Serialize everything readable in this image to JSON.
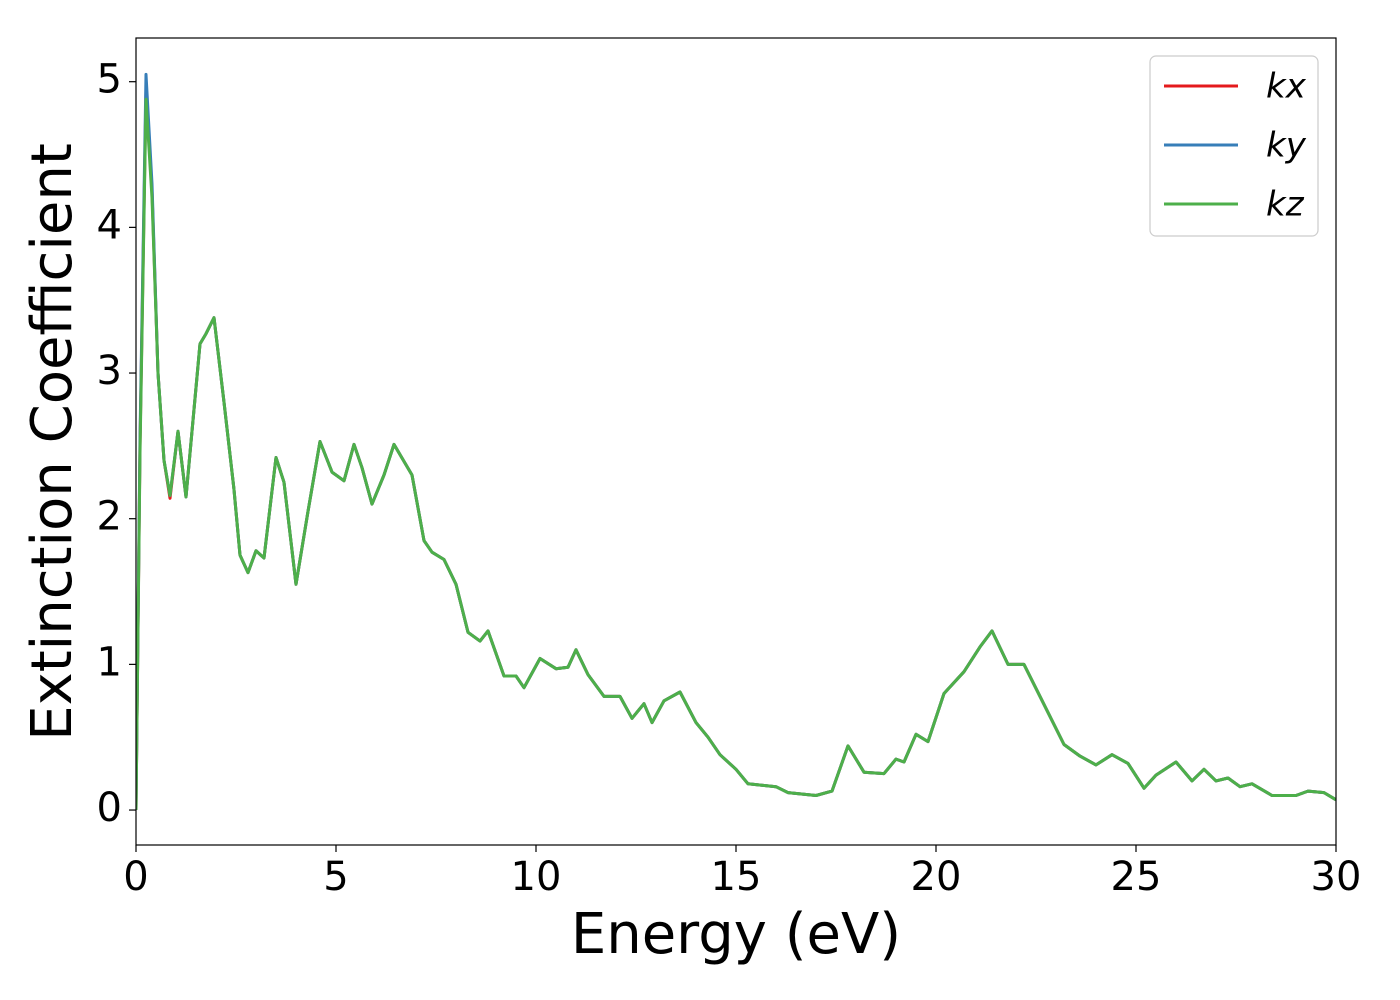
{
  "chart_data": {
    "type": "line",
    "xlabel": "Energy (eV)",
    "ylabel": "Extinction Coefficient",
    "xlim": [
      0,
      30
    ],
    "ylim": [
      -0.24,
      5.3
    ],
    "xticks": [
      0,
      5,
      10,
      15,
      20,
      25,
      30
    ],
    "yticks": [
      0,
      1,
      2,
      3,
      4,
      5
    ],
    "legend": "upper right",
    "x": [
      0,
      0.1,
      0.25,
      0.4,
      0.55,
      0.7,
      0.85,
      1.05,
      1.25,
      1.4,
      1.6,
      1.75,
      1.95,
      2.2,
      2.45,
      2.6,
      2.8,
      3.0,
      3.2,
      3.5,
      3.7,
      4.0,
      4.3,
      4.6,
      4.9,
      5.2,
      5.45,
      5.65,
      5.9,
      6.2,
      6.45,
      6.9,
      7.2,
      7.4,
      7.7,
      8.0,
      8.3,
      8.6,
      8.8,
      9.2,
      9.5,
      9.7,
      10.1,
      10.5,
      10.8,
      11.0,
      11.3,
      11.7,
      12.1,
      12.4,
      12.7,
      12.9,
      13.2,
      13.6,
      14.0,
      14.3,
      14.6,
      15.0,
      15.3,
      16.0,
      16.3,
      17.0,
      17.4,
      17.8,
      18.2,
      18.7,
      19.0,
      19.2,
      19.5,
      19.8,
      20.2,
      20.7,
      21.1,
      21.4,
      21.8,
      22.2,
      22.6,
      23.2,
      23.6,
      24.0,
      24.4,
      24.8,
      25.2,
      25.5,
      26.0,
      26.4,
      26.7,
      27.0,
      27.3,
      27.6,
      27.9,
      28.4,
      29.0,
      29.3,
      29.7,
      30.0
    ],
    "series": [
      {
        "name": "kx",
        "color": "#e41a1c",
        "values": [
          0,
          2.5,
          4.93,
          4.25,
          3.0,
          2.4,
          2.14,
          2.6,
          2.15,
          2.6,
          3.2,
          3.27,
          3.38,
          2.8,
          2.2,
          1.75,
          1.63,
          1.78,
          1.73,
          2.42,
          2.25,
          1.55,
          2.05,
          2.53,
          2.32,
          2.26,
          2.51,
          2.35,
          2.1,
          2.3,
          2.51,
          2.3,
          1.85,
          1.77,
          1.72,
          1.55,
          1.22,
          1.16,
          1.23,
          0.92,
          0.92,
          0.84,
          1.04,
          0.97,
          0.98,
          1.1,
          0.93,
          0.78,
          0.78,
          0.63,
          0.73,
          0.6,
          0.75,
          0.81,
          0.6,
          0.5,
          0.38,
          0.28,
          0.18,
          0.16,
          0.12,
          0.1,
          0.13,
          0.44,
          0.26,
          0.25,
          0.35,
          0.33,
          0.52,
          0.47,
          0.8,
          0.95,
          1.12,
          1.23,
          1.0,
          1.0,
          0.78,
          0.45,
          0.37,
          0.31,
          0.38,
          0.32,
          0.15,
          0.24,
          0.33,
          0.2,
          0.28,
          0.2,
          0.22,
          0.16,
          0.18,
          0.1,
          0.1,
          0.13,
          0.12,
          0.07
        ]
      },
      {
        "name": "ky",
        "color": "#377eb8",
        "values": [
          0,
          2.55,
          5.05,
          4.3,
          3.0,
          2.4,
          2.16,
          2.6,
          2.15,
          2.6,
          3.2,
          3.27,
          3.38,
          2.8,
          2.2,
          1.75,
          1.63,
          1.78,
          1.73,
          2.42,
          2.25,
          1.55,
          2.05,
          2.53,
          2.32,
          2.26,
          2.51,
          2.35,
          2.1,
          2.3,
          2.51,
          2.3,
          1.85,
          1.77,
          1.72,
          1.55,
          1.22,
          1.16,
          1.23,
          0.92,
          0.92,
          0.84,
          1.04,
          0.97,
          0.98,
          1.1,
          0.93,
          0.78,
          0.78,
          0.63,
          0.73,
          0.6,
          0.75,
          0.81,
          0.6,
          0.5,
          0.38,
          0.28,
          0.18,
          0.16,
          0.12,
          0.1,
          0.13,
          0.44,
          0.26,
          0.25,
          0.35,
          0.33,
          0.52,
          0.47,
          0.8,
          0.95,
          1.12,
          1.23,
          1.0,
          1.0,
          0.78,
          0.45,
          0.37,
          0.31,
          0.38,
          0.32,
          0.15,
          0.24,
          0.33,
          0.2,
          0.28,
          0.2,
          0.22,
          0.16,
          0.18,
          0.1,
          0.1,
          0.13,
          0.12,
          0.07
        ]
      },
      {
        "name": "kz",
        "color": "#4daf4a",
        "values": [
          0,
          2.45,
          4.88,
          4.2,
          3.0,
          2.4,
          2.16,
          2.6,
          2.15,
          2.6,
          3.2,
          3.27,
          3.38,
          2.8,
          2.2,
          1.75,
          1.63,
          1.78,
          1.73,
          2.42,
          2.25,
          1.55,
          2.05,
          2.53,
          2.32,
          2.26,
          2.51,
          2.35,
          2.1,
          2.3,
          2.51,
          2.3,
          1.85,
          1.77,
          1.72,
          1.55,
          1.22,
          1.16,
          1.23,
          0.92,
          0.92,
          0.84,
          1.04,
          0.97,
          0.98,
          1.1,
          0.93,
          0.78,
          0.78,
          0.63,
          0.73,
          0.6,
          0.75,
          0.81,
          0.6,
          0.5,
          0.38,
          0.28,
          0.18,
          0.16,
          0.12,
          0.1,
          0.13,
          0.44,
          0.26,
          0.25,
          0.35,
          0.33,
          0.52,
          0.47,
          0.8,
          0.95,
          1.12,
          1.23,
          1.0,
          1.0,
          0.78,
          0.45,
          0.37,
          0.31,
          0.38,
          0.32,
          0.15,
          0.24,
          0.33,
          0.2,
          0.28,
          0.2,
          0.22,
          0.16,
          0.18,
          0.1,
          0.1,
          0.13,
          0.12,
          0.07
        ]
      }
    ]
  }
}
